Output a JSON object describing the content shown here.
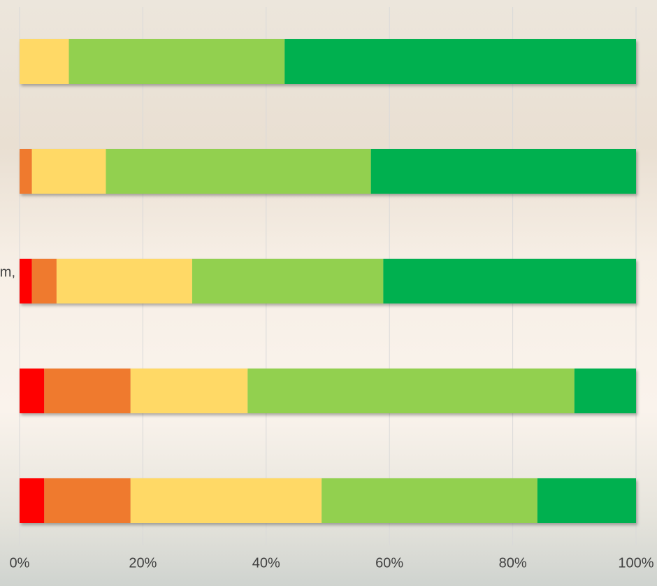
{
  "chart_data": {
    "type": "stacked-bar-horizontal",
    "categories": [
      null,
      null,
      "m,",
      null,
      null
    ],
    "series": [
      {
        "color": "#ff0000",
        "values": [
          0,
          0,
          2,
          4,
          4
        ]
      },
      {
        "color": "#ef7a2f",
        "values": [
          0,
          2,
          4,
          14,
          14
        ]
      },
      {
        "color": "#ffd966",
        "values": [
          8,
          12,
          22,
          19,
          31
        ]
      },
      {
        "color": "#92d050",
        "values": [
          35,
          43,
          31,
          53,
          35
        ]
      },
      {
        "color": "#00b050",
        "values": [
          57,
          43,
          41,
          10,
          16
        ]
      }
    ],
    "xlim": [
      0,
      100
    ],
    "xticks": [
      {
        "value": 0,
        "label": "0%"
      },
      {
        "value": 20,
        "label": "20%"
      },
      {
        "value": 40,
        "label": "40%"
      },
      {
        "value": 60,
        "label": "60%"
      },
      {
        "value": 80,
        "label": "80%"
      },
      {
        "value": 100,
        "label": "100%"
      }
    ],
    "grid": true
  }
}
